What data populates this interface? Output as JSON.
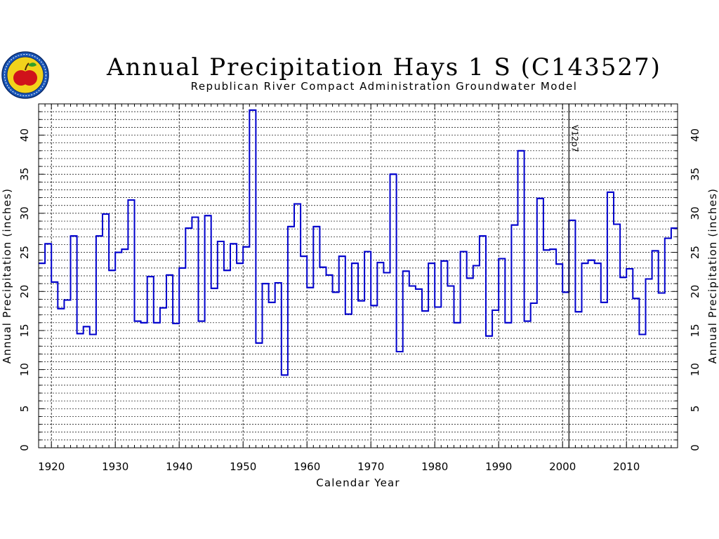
{
  "chart_data": {
    "type": "line",
    "step": true,
    "title": "Annual Precipitation Hays 1 S (C143527)",
    "subtitle": "Republican River Compact Administration Groundwater Model",
    "xlabel": "Calendar Year",
    "ylabel": "Annual Precipitation (inches)",
    "xlim": [
      1918,
      2018
    ],
    "ylim": [
      0,
      44
    ],
    "xticks": [
      "1920",
      "1930",
      "1940",
      "1950",
      "1960",
      "1970",
      "1980",
      "1990",
      "2000",
      "2010"
    ],
    "yticks": [
      "0",
      "5",
      "10",
      "15",
      "20",
      "25",
      "30",
      "35",
      "40"
    ],
    "grid": true,
    "annotation": {
      "text": "V12p7",
      "x": 2001
    },
    "series_color": "#0000cc",
    "x": [
      1918,
      1919,
      1920,
      1921,
      1922,
      1923,
      1924,
      1925,
      1926,
      1927,
      1928,
      1929,
      1930,
      1931,
      1932,
      1933,
      1934,
      1935,
      1936,
      1937,
      1938,
      1939,
      1940,
      1941,
      1942,
      1943,
      1944,
      1945,
      1946,
      1947,
      1948,
      1949,
      1950,
      1951,
      1952,
      1953,
      1954,
      1955,
      1956,
      1957,
      1958,
      1959,
      1960,
      1961,
      1962,
      1963,
      1964,
      1965,
      1966,
      1967,
      1968,
      1969,
      1970,
      1971,
      1972,
      1973,
      1974,
      1975,
      1976,
      1977,
      1978,
      1979,
      1980,
      1981,
      1982,
      1983,
      1984,
      1985,
      1986,
      1987,
      1988,
      1989,
      1990,
      1991,
      1992,
      1993,
      1994,
      1995,
      1996,
      1997,
      1998,
      1999,
      2000,
      2001,
      2002,
      2003,
      2004,
      2005,
      2006,
      2007,
      2008,
      2009,
      2010,
      2011,
      2012,
      2013,
      2014,
      2015,
      2016,
      2017
    ],
    "values": [
      23.6,
      26.1,
      21.2,
      17.8,
      18.9,
      27.1,
      14.6,
      15.5,
      14.5,
      27.1,
      29.9,
      22.7,
      25.0,
      25.4,
      31.7,
      16.2,
      16.0,
      21.9,
      16.0,
      17.9,
      22.1,
      15.9,
      23.0,
      28.1,
      29.5,
      16.2,
      29.7,
      20.4,
      26.4,
      22.7,
      26.1,
      23.6,
      25.7,
      43.2,
      13.4,
      21.0,
      18.6,
      21.1,
      9.3,
      28.3,
      31.2,
      24.5,
      20.5,
      28.3,
      23.1,
      22.1,
      19.9,
      24.5,
      17.1,
      23.6,
      18.8,
      25.1,
      18.2,
      23.7,
      22.4,
      35.0,
      12.3,
      22.6,
      20.7,
      20.3,
      17.5,
      23.6,
      18.0,
      23.9,
      20.7,
      16.0,
      25.1,
      21.7,
      23.3,
      27.1,
      14.3,
      17.6,
      24.2,
      16.0,
      28.5,
      38.0,
      16.2,
      18.5,
      31.9,
      25.3,
      25.4,
      23.5,
      19.9,
      29.1,
      17.4,
      23.6,
      24.0,
      23.6,
      18.6,
      32.7,
      28.6,
      21.8,
      22.9,
      19.1,
      14.5,
      21.6,
      25.2,
      19.8,
      26.8,
      28.1
    ]
  }
}
